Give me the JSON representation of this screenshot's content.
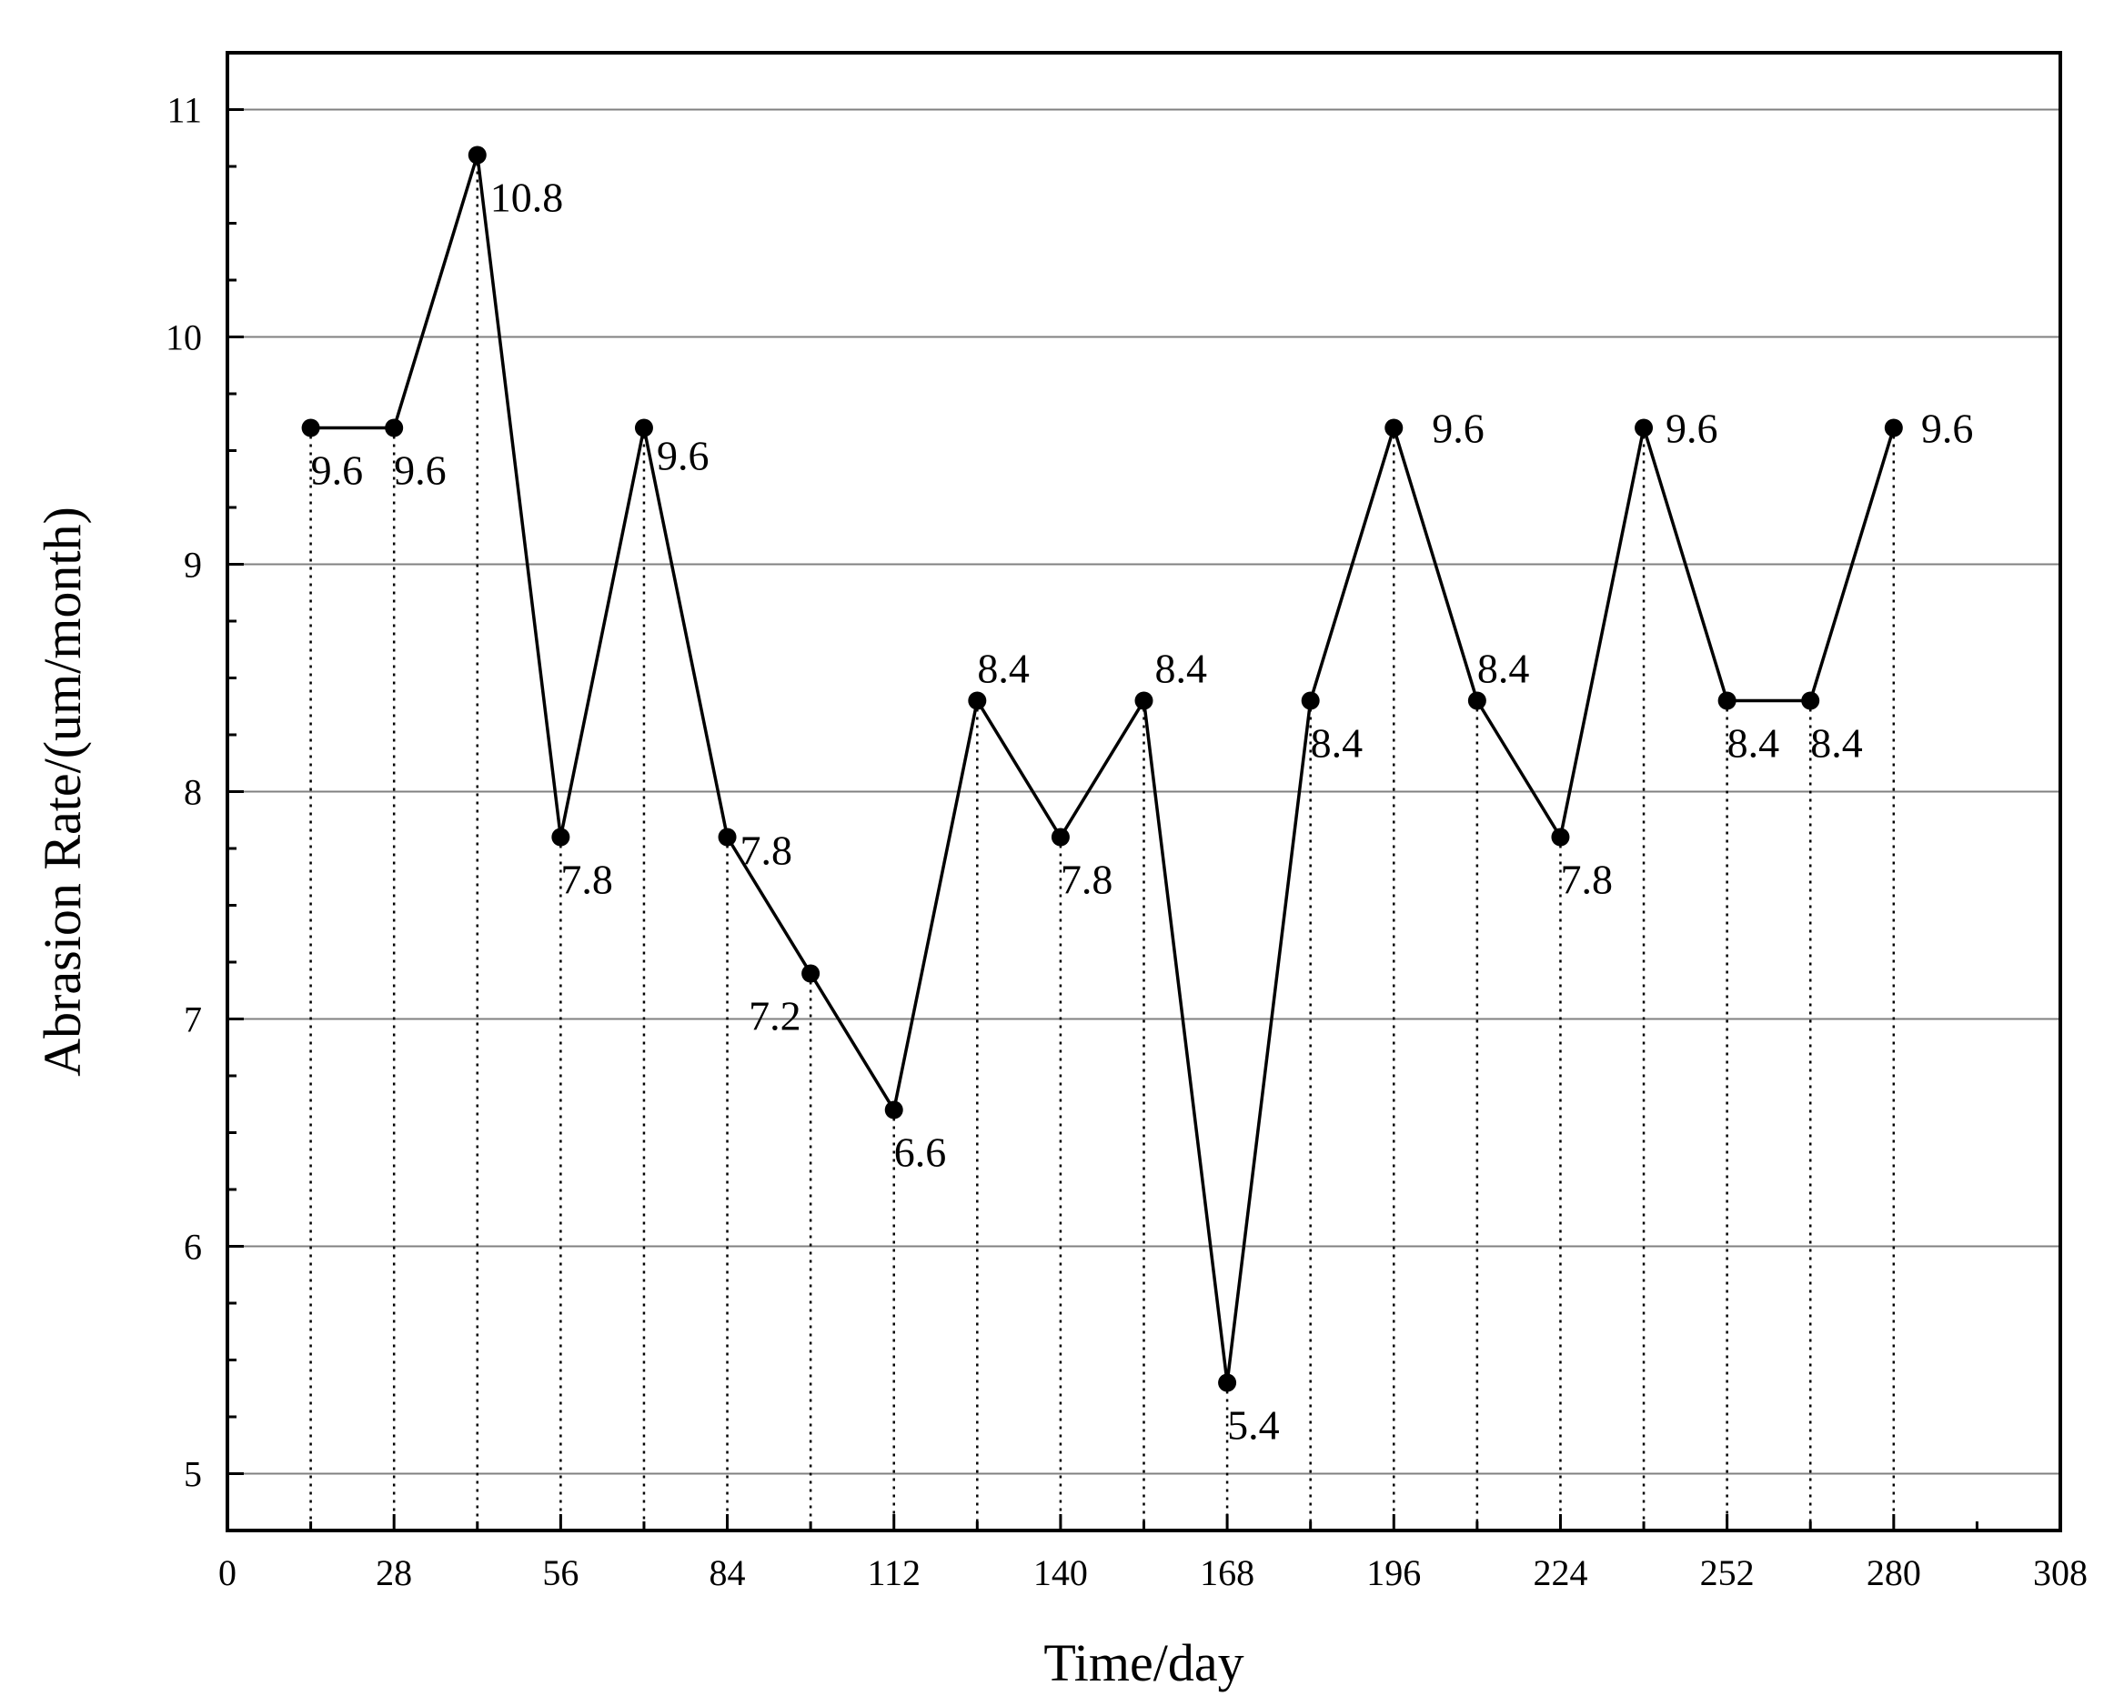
{
  "chart_data": {
    "type": "line",
    "xlabel": "Time/day",
    "ylabel": "Abrasion Rate/(um/month)",
    "xlim": [
      0,
      308
    ],
    "ylim": [
      4.75,
      11.25
    ],
    "x_ticks": [
      "0",
      "28",
      "56",
      "84",
      "112",
      "140",
      "168",
      "196",
      "224",
      "252",
      "280",
      "308"
    ],
    "y_ticks": [
      "5",
      "6",
      "7",
      "8",
      "9",
      "10",
      "11"
    ],
    "grid": "horizontal",
    "drop_lines": "dotted",
    "legend": "none",
    "x": [
      14,
      28,
      42,
      56,
      70,
      84,
      98,
      112,
      126,
      140,
      154,
      168,
      182,
      196,
      210,
      224,
      238,
      252,
      266,
      280
    ],
    "values": [
      9.6,
      9.6,
      10.8,
      7.8,
      9.6,
      7.8,
      7.2,
      6.6,
      8.4,
      7.8,
      8.4,
      5.4,
      8.4,
      9.6,
      8.4,
      7.8,
      9.6,
      8.4,
      8.4,
      9.6
    ],
    "data_labels": [
      "9.6",
      "9.6",
      "10.8",
      "7.8",
      "9.6",
      "7.8",
      "7.2",
      "6.6",
      "8.4",
      "7.8",
      "8.4",
      "5.4",
      "8.4",
      "9.6",
      "8.4",
      "7.8",
      "9.6",
      "8.4",
      "8.4",
      "9.6"
    ],
    "colors": {
      "line": "#000000",
      "marker": "#000000",
      "grid": "#808080"
    }
  }
}
